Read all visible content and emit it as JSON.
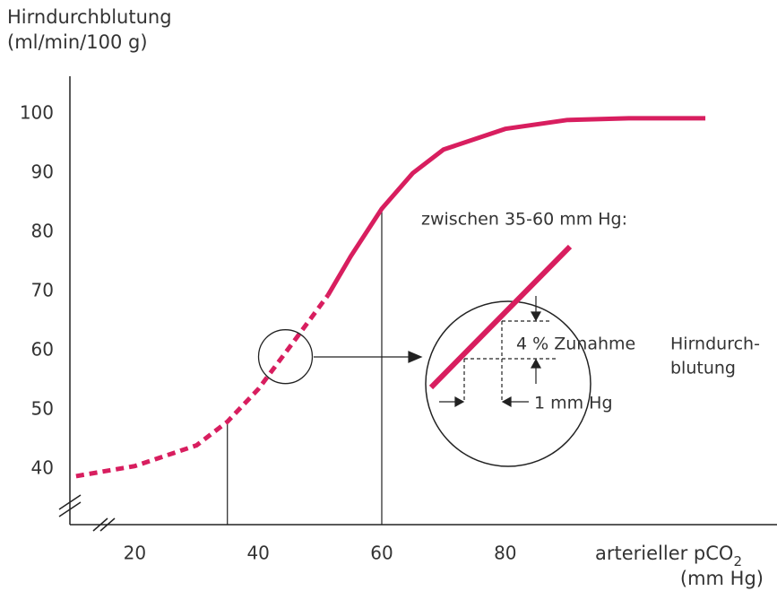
{
  "chart_data": {
    "type": "line",
    "y_label": "Hirndurchblutung",
    "y_unit": "(ml/min/100 g)",
    "x_label": "arterieller pCO",
    "x_label_sub": "2",
    "x_unit": "(mm Hg)",
    "annotation": "zwischen 35-60 mm Hg:",
    "inset_texts": [
      "4 % Zunahme",
      "Hirndurch-",
      "blutung",
      "1 mm Hg"
    ],
    "xlim": [
      9.5,
      124
    ],
    "xticks": [
      20,
      40,
      60,
      80
    ],
    "ylim": [
      30.6,
      106.4
    ],
    "yticks": [
      40,
      50,
      60,
      70,
      80,
      90,
      100
    ],
    "series": [
      {
        "color": "#d81e5f",
        "dashed": true,
        "x": [
          10.5,
          20,
          30,
          35,
          40,
          45,
          51.3
        ],
        "values": [
          38.8,
          40.5,
          44,
          48,
          53.5,
          60.5,
          69.4
        ]
      },
      {
        "color": "#d81e5f",
        "dashed": false,
        "x": [
          51.3,
          55,
          60,
          65,
          70,
          80,
          90,
          100,
          112.4
        ],
        "values": [
          69.4,
          76,
          84,
          90,
          94,
          97.5,
          99,
          99.3,
          99.3
        ]
      }
    ],
    "reference_lines": [
      {
        "x": 35,
        "y": 48
      },
      {
        "x": 60,
        "y": 84
      }
    ],
    "magnifier": {
      "x": 44.4,
      "y": 59
    }
  }
}
